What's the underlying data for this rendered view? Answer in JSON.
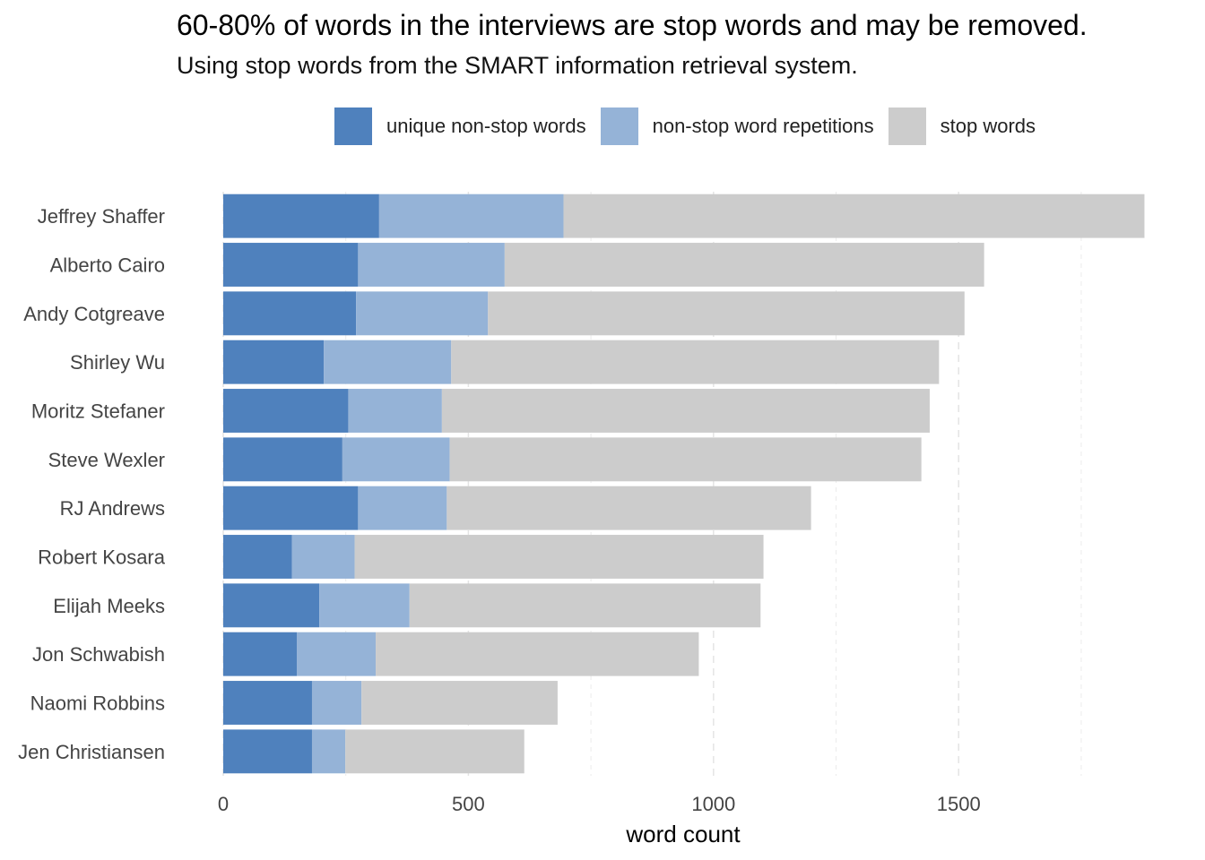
{
  "chart_data": {
    "type": "bar",
    "orientation": "horizontal",
    "stacked": true,
    "title": "60-80% of words in the interviews are stop words and may be removed.",
    "subtitle": "Using stop words from the SMART information retrieval system.",
    "xlabel": "word count",
    "ylabel": "",
    "xlim": [
      0,
      1880
    ],
    "xticks": [
      0,
      500,
      1000,
      1500
    ],
    "grid": true,
    "legend_position": "top",
    "categories": [
      "Jeffrey Shaffer",
      "Alberto Cairo",
      "Andy Cotgreave",
      "Shirley Wu",
      "Moritz Stefaner",
      "Steve Wexler",
      "RJ Andrews",
      "Robert Kosara",
      "Elijah Meeks",
      "Jon Schwabish",
      "Naomi Robbins",
      "Jen Christiansen"
    ],
    "series": [
      {
        "name": "unique non-stop words",
        "color": "#4f81bd",
        "values": [
          318,
          275,
          271,
          205,
          255,
          243,
          275,
          140,
          196,
          150,
          181,
          181
        ]
      },
      {
        "name": "non-stop word repetitions",
        "color": "#95b3d7",
        "values": [
          376,
          299,
          269,
          260,
          191,
          219,
          181,
          128,
          184,
          161,
          101,
          68
        ]
      },
      {
        "name": "stop words",
        "color": "#cccccc",
        "values": [
          1185,
          978,
          972,
          995,
          995,
          962,
          743,
          834,
          716,
          659,
          400,
          365
        ]
      }
    ]
  }
}
